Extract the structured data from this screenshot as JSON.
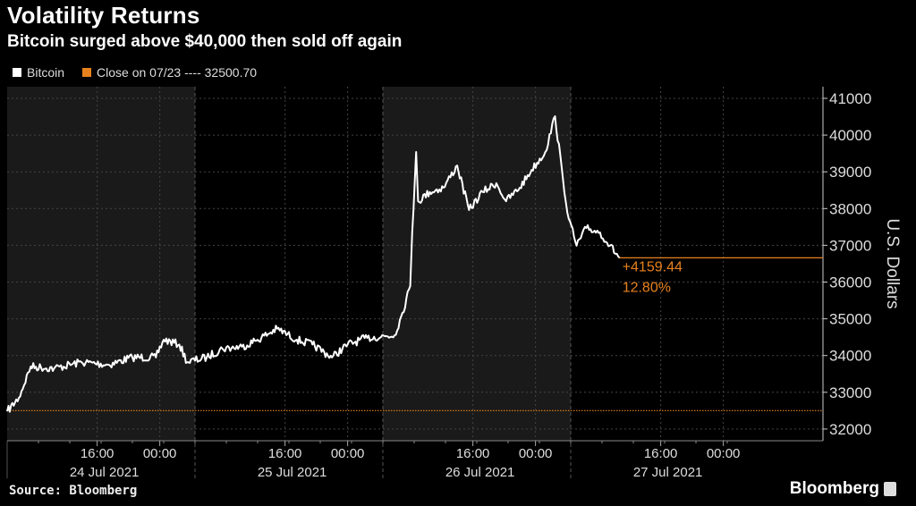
{
  "header": {
    "title": "Volatility Returns",
    "subtitle": "Bitcoin surged above $40,000 then sold off again"
  },
  "legend": {
    "series_label": "Bitcoin",
    "reference_label": "Close on 07/23 ---- 32500.70"
  },
  "footer": {
    "source": "Source: Bloomberg",
    "brand": "Bloomberg"
  },
  "colors": {
    "background": "#000000",
    "shaded_band": "#1a1a1a",
    "series": "#ffffff",
    "accent": "#e8821e"
  },
  "chart_data": {
    "type": "line",
    "title": "Volatility Returns",
    "subtitle": "Bitcoin surged above $40,000 then sold off again",
    "ylabel": "U.S. Dollars",
    "xlabel": "",
    "ylim": [
      31700,
      41300
    ],
    "yticks": [
      32000,
      33000,
      34000,
      35000,
      36000,
      37000,
      38000,
      39000,
      40000,
      41000
    ],
    "y_axis_side": "right",
    "grid": true,
    "legend_position": "top-left",
    "x_tick_labels": [
      "16:00",
      "00:00"
    ],
    "days": [
      {
        "label": "24 Jul 2021",
        "start": "2021-07-24T04:30",
        "shaded": true
      },
      {
        "label": "25 Jul 2021",
        "start": "2021-07-25T04:30",
        "shaded": false
      },
      {
        "label": "26 Jul 2021",
        "start": "2021-07-26T04:30",
        "shaded": true
      },
      {
        "label": "27 Jul 2021",
        "start": "2021-07-27T04:30",
        "shaded": false
      }
    ],
    "reference_line": {
      "label": "Close on 07/23",
      "value": 32500.7
    },
    "annotation": {
      "change": "+4159.44",
      "percent": "12.80%",
      "last_value": 36660.14
    },
    "series": [
      {
        "name": "Bitcoin",
        "x": [
          "2021-07-24T04:30",
          "2021-07-24T06:00",
          "2021-07-24T07:30",
          "2021-07-24T10:30",
          "2021-07-24T14:00",
          "2021-07-24T17:30",
          "2021-07-24T20:30",
          "2021-07-24T23:30",
          "2021-07-25T00:30",
          "2021-07-25T02:30",
          "2021-07-25T03:30",
          "2021-07-25T06:00",
          "2021-07-25T08:00",
          "2021-07-25T10:30",
          "2021-07-25T12:30",
          "2021-07-25T15:00",
          "2021-07-25T17:30",
          "2021-07-25T19:30",
          "2021-07-25T22:00",
          "2021-07-26T00:00",
          "2021-07-26T02:30",
          "2021-07-26T06:00",
          "2021-07-26T07:00",
          "2021-07-26T08:00",
          "2021-07-26T08:15",
          "2021-07-26T08:45",
          "2021-07-26T09:00",
          "2021-07-26T10:30",
          "2021-07-26T12:15",
          "2021-07-26T14:00",
          "2021-07-26T15:30",
          "2021-07-26T17:15",
          "2021-07-26T19:00",
          "2021-07-26T20:15",
          "2021-07-26T22:00",
          "2021-07-26T23:30",
          "2021-07-27T01:15",
          "2021-07-27T02:30",
          "2021-07-27T03:30",
          "2021-07-27T04:15",
          "2021-07-27T05:15",
          "2021-07-27T06:30",
          "2021-07-27T08:15",
          "2021-07-27T09:30",
          "2021-07-27T10:45"
        ],
        "y": [
          32480,
          32850,
          33700,
          33650,
          33820,
          33750,
          33950,
          33950,
          34430,
          34300,
          33820,
          33950,
          34190,
          34240,
          34430,
          34730,
          34430,
          34300,
          33950,
          34300,
          34480,
          34550,
          35160,
          35890,
          37350,
          39540,
          38200,
          38450,
          38570,
          39170,
          37960,
          38450,
          38690,
          38200,
          38570,
          39050,
          39540,
          40510,
          38810,
          37720,
          36990,
          37470,
          37350,
          36990,
          36660
        ]
      }
    ]
  }
}
